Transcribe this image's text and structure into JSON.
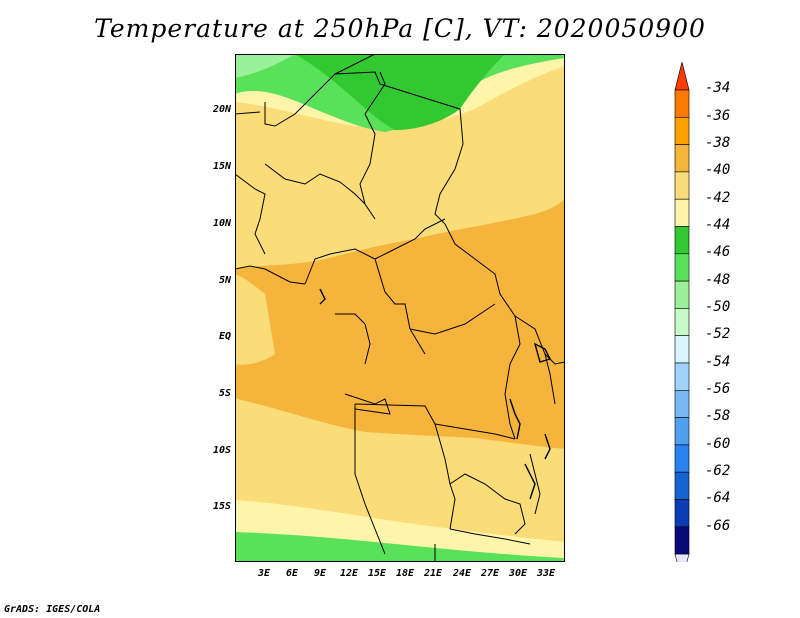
{
  "title": "Temperature at 250hPa [C], VT: 2020050900",
  "credit": "GrADS: IGES/COLA",
  "map": {
    "lat_labels": [
      "20N",
      "15N",
      "10N",
      "5N",
      "EQ",
      "5S",
      "10S",
      "15S"
    ],
    "lon_labels": [
      "3E",
      "6E",
      "9E",
      "12E",
      "15E",
      "18E",
      "21E",
      "24E",
      "27E",
      "30E",
      "33E"
    ],
    "lon_range": [
      0,
      35
    ],
    "lat_range": [
      -20,
      25
    ]
  },
  "colorbar": {
    "labels": [
      "-34",
      "-36",
      "-38",
      "-40",
      "-42",
      "-44",
      "-46",
      "-48",
      "-50",
      "-52",
      "-54",
      "-56",
      "-58",
      "-60",
      "-62",
      "-64",
      "-66"
    ],
    "colors": [
      "#ff3c00",
      "#ff7800",
      "#ffa000",
      "#f5b43c",
      "#fadc78",
      "#fff5aa",
      "#32c832",
      "#5ae15a",
      "#9bf09b",
      "#c8fac8",
      "#d7f5ff",
      "#a0d2fa",
      "#78b9f5",
      "#50a0f0",
      "#2882f0",
      "#1464d2",
      "#0a3cb4",
      "#0a0a78",
      "#e6e6ff"
    ]
  }
}
